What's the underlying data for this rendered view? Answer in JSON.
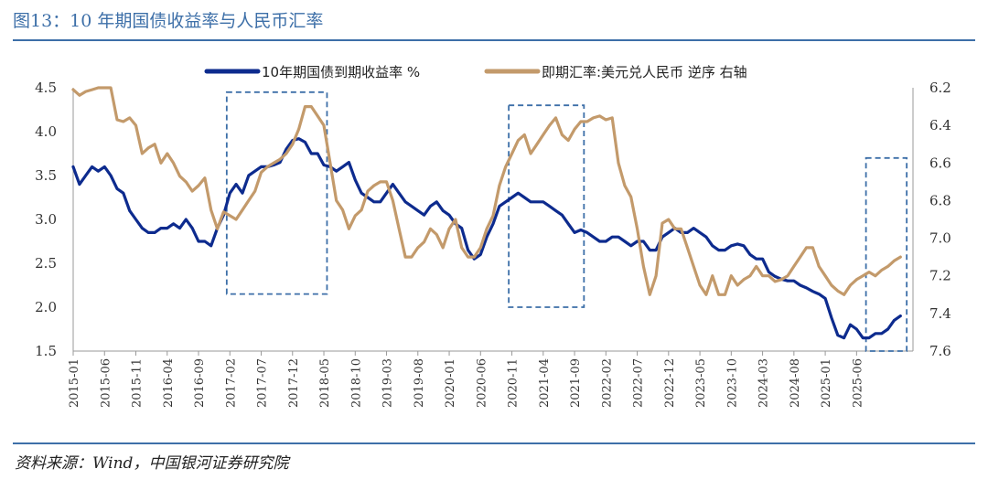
{
  "figure": {
    "title": "图13：10 年期国债收益率与人民币汇率",
    "source": "资料来源：Wind，中国银河证券研究院"
  },
  "colors": {
    "series_yield": "#0d2b8e",
    "series_fx": "#c39a6b",
    "box": "#3d6fa8",
    "title": "#3d6fa8"
  },
  "chart_data": {
    "type": "line",
    "x_unit": "month",
    "x_start": "2015-01",
    "x_ticks": [
      "2015-01",
      "2015-06",
      "2015-11",
      "2016-04",
      "2016-09",
      "2017-02",
      "2017-07",
      "2017-12",
      "2018-05",
      "2018-10",
      "2019-03",
      "2019-08",
      "2020-01",
      "2020-06",
      "2020-11",
      "2021-04",
      "2021-09",
      "2022-02",
      "2022-07",
      "2022-12",
      "2023-05",
      "2023-10",
      "2024-03",
      "2024-08",
      "2025-01",
      "2025-06"
    ],
    "left_axis": {
      "ylim": [
        1.5,
        4.5
      ],
      "ticks": [
        "1.5",
        "2.0",
        "2.5",
        "3.0",
        "3.5",
        "4.0",
        "4.5"
      ]
    },
    "right_axis": {
      "ylim": [
        6.2,
        7.6
      ],
      "inverted": true,
      "ticks": [
        "6.2",
        "6.4",
        "6.6",
        "6.8",
        "7.0",
        "7.2",
        "7.4",
        "7.6"
      ]
    },
    "series": [
      {
        "name": "10年期国债到期收益率 %",
        "axis": "left",
        "points": [
          [
            0,
            3.6
          ],
          [
            1,
            3.4
          ],
          [
            2,
            3.5
          ],
          [
            3,
            3.6
          ],
          [
            4,
            3.55
          ],
          [
            5,
            3.6
          ],
          [
            6,
            3.5
          ],
          [
            7,
            3.35
          ],
          [
            8,
            3.3
          ],
          [
            9,
            3.1
          ],
          [
            10,
            3.0
          ],
          [
            11,
            2.9
          ],
          [
            12,
            2.85
          ],
          [
            13,
            2.85
          ],
          [
            14,
            2.9
          ],
          [
            15,
            2.9
          ],
          [
            16,
            2.95
          ],
          [
            17,
            2.9
          ],
          [
            18,
            3.0
          ],
          [
            19,
            2.9
          ],
          [
            20,
            2.75
          ],
          [
            21,
            2.75
          ],
          [
            22,
            2.7
          ],
          [
            23,
            2.9
          ],
          [
            24,
            3.05
          ],
          [
            25,
            3.3
          ],
          [
            26,
            3.4
          ],
          [
            27,
            3.3
          ],
          [
            28,
            3.5
          ],
          [
            29,
            3.55
          ],
          [
            30,
            3.6
          ],
          [
            31,
            3.6
          ],
          [
            32,
            3.62
          ],
          [
            33,
            3.65
          ],
          [
            34,
            3.8
          ],
          [
            35,
            3.9
          ],
          [
            36,
            3.92
          ],
          [
            37,
            3.88
          ],
          [
            38,
            3.75
          ],
          [
            39,
            3.75
          ],
          [
            40,
            3.62
          ],
          [
            41,
            3.6
          ],
          [
            42,
            3.55
          ],
          [
            43,
            3.6
          ],
          [
            44,
            3.65
          ],
          [
            45,
            3.45
          ],
          [
            46,
            3.3
          ],
          [
            47,
            3.25
          ],
          [
            48,
            3.2
          ],
          [
            49,
            3.2
          ],
          [
            50,
            3.3
          ],
          [
            51,
            3.4
          ],
          [
            52,
            3.3
          ],
          [
            53,
            3.2
          ],
          [
            54,
            3.15
          ],
          [
            55,
            3.1
          ],
          [
            56,
            3.05
          ],
          [
            57,
            3.15
          ],
          [
            58,
            3.2
          ],
          [
            59,
            3.1
          ],
          [
            60,
            3.05
          ],
          [
            61,
            2.95
          ],
          [
            62,
            2.9
          ],
          [
            63,
            2.65
          ],
          [
            64,
            2.55
          ],
          [
            65,
            2.6
          ],
          [
            66,
            2.8
          ],
          [
            67,
            2.95
          ],
          [
            68,
            3.15
          ],
          [
            69,
            3.2
          ],
          [
            70,
            3.25
          ],
          [
            71,
            3.3
          ],
          [
            72,
            3.25
          ],
          [
            73,
            3.2
          ],
          [
            74,
            3.2
          ],
          [
            75,
            3.2
          ],
          [
            76,
            3.15
          ],
          [
            77,
            3.1
          ],
          [
            78,
            3.05
          ],
          [
            79,
            2.95
          ],
          [
            80,
            2.85
          ],
          [
            81,
            2.88
          ],
          [
            82,
            2.85
          ],
          [
            83,
            2.8
          ],
          [
            84,
            2.75
          ],
          [
            85,
            2.75
          ],
          [
            86,
            2.8
          ],
          [
            87,
            2.8
          ],
          [
            88,
            2.75
          ],
          [
            89,
            2.7
          ],
          [
            90,
            2.75
          ],
          [
            91,
            2.75
          ],
          [
            92,
            2.65
          ],
          [
            93,
            2.65
          ],
          [
            94,
            2.8
          ],
          [
            95,
            2.85
          ],
          [
            96,
            2.9
          ],
          [
            97,
            2.85
          ],
          [
            98,
            2.85
          ],
          [
            99,
            2.9
          ],
          [
            100,
            2.85
          ],
          [
            101,
            2.8
          ],
          [
            102,
            2.7
          ],
          [
            103,
            2.65
          ],
          [
            104,
            2.65
          ],
          [
            105,
            2.7
          ],
          [
            106,
            2.72
          ],
          [
            107,
            2.7
          ],
          [
            108,
            2.6
          ],
          [
            109,
            2.55
          ],
          [
            110,
            2.55
          ],
          [
            111,
            2.4
          ],
          [
            112,
            2.35
          ],
          [
            113,
            2.32
          ],
          [
            114,
            2.3
          ],
          [
            115,
            2.3
          ],
          [
            116,
            2.25
          ],
          [
            117,
            2.22
          ],
          [
            118,
            2.18
          ],
          [
            119,
            2.15
          ],
          [
            120,
            2.1
          ],
          [
            121,
            1.88
          ],
          [
            122,
            1.68
          ],
          [
            123,
            1.65
          ],
          [
            124,
            1.8
          ],
          [
            125,
            1.75
          ],
          [
            126,
            1.65
          ],
          [
            127,
            1.65
          ],
          [
            128,
            1.7
          ],
          [
            129,
            1.7
          ],
          [
            130,
            1.75
          ],
          [
            131,
            1.85
          ],
          [
            132,
            1.9
          ]
        ]
      },
      {
        "name": "即期汇率:美元兑人民币 逆序 右轴",
        "axis": "right",
        "points": [
          [
            0,
            6.21
          ],
          [
            1,
            6.24
          ],
          [
            2,
            6.22
          ],
          [
            3,
            6.21
          ],
          [
            4,
            6.2
          ],
          [
            5,
            6.2
          ],
          [
            6,
            6.2
          ],
          [
            7,
            6.37
          ],
          [
            8,
            6.38
          ],
          [
            9,
            6.36
          ],
          [
            10,
            6.4
          ],
          [
            11,
            6.55
          ],
          [
            12,
            6.52
          ],
          [
            13,
            6.5
          ],
          [
            14,
            6.6
          ],
          [
            15,
            6.55
          ],
          [
            16,
            6.6
          ],
          [
            17,
            6.67
          ],
          [
            18,
            6.7
          ],
          [
            19,
            6.75
          ],
          [
            20,
            6.72
          ],
          [
            21,
            6.68
          ],
          [
            22,
            6.85
          ],
          [
            23,
            6.95
          ],
          [
            24,
            6.86
          ],
          [
            25,
            6.88
          ],
          [
            26,
            6.9
          ],
          [
            27,
            6.85
          ],
          [
            28,
            6.8
          ],
          [
            29,
            6.75
          ],
          [
            30,
            6.65
          ],
          [
            31,
            6.62
          ],
          [
            32,
            6.6
          ],
          [
            33,
            6.58
          ],
          [
            34,
            6.55
          ],
          [
            35,
            6.5
          ],
          [
            36,
            6.42
          ],
          [
            37,
            6.3
          ],
          [
            38,
            6.3
          ],
          [
            39,
            6.35
          ],
          [
            40,
            6.4
          ],
          [
            41,
            6.6
          ],
          [
            42,
            6.8
          ],
          [
            43,
            6.85
          ],
          [
            44,
            6.95
          ],
          [
            45,
            6.88
          ],
          [
            46,
            6.85
          ],
          [
            47,
            6.75
          ],
          [
            48,
            6.72
          ],
          [
            49,
            6.7
          ],
          [
            50,
            6.7
          ],
          [
            51,
            6.8
          ],
          [
            52,
            6.95
          ],
          [
            53,
            7.1
          ],
          [
            54,
            7.1
          ],
          [
            55,
            7.05
          ],
          [
            56,
            7.02
          ],
          [
            57,
            6.95
          ],
          [
            58,
            6.98
          ],
          [
            59,
            7.05
          ],
          [
            60,
            6.95
          ],
          [
            61,
            6.9
          ],
          [
            62,
            7.05
          ],
          [
            63,
            7.1
          ],
          [
            64,
            7.1
          ],
          [
            65,
            7.05
          ],
          [
            66,
            6.95
          ],
          [
            67,
            6.88
          ],
          [
            68,
            6.72
          ],
          [
            69,
            6.62
          ],
          [
            70,
            6.55
          ],
          [
            71,
            6.48
          ],
          [
            72,
            6.45
          ],
          [
            73,
            6.55
          ],
          [
            74,
            6.5
          ],
          [
            75,
            6.45
          ],
          [
            76,
            6.4
          ],
          [
            77,
            6.36
          ],
          [
            78,
            6.45
          ],
          [
            79,
            6.48
          ],
          [
            80,
            6.42
          ],
          [
            81,
            6.38
          ],
          [
            82,
            6.38
          ],
          [
            83,
            6.36
          ],
          [
            84,
            6.35
          ],
          [
            85,
            6.37
          ],
          [
            86,
            6.36
          ],
          [
            87,
            6.6
          ],
          [
            88,
            6.72
          ],
          [
            89,
            6.78
          ],
          [
            90,
            6.95
          ],
          [
            91,
            7.15
          ],
          [
            92,
            7.3
          ],
          [
            93,
            7.2
          ],
          [
            94,
            6.92
          ],
          [
            95,
            6.9
          ],
          [
            96,
            6.95
          ],
          [
            97,
            6.95
          ],
          [
            98,
            7.05
          ],
          [
            99,
            7.15
          ],
          [
            100,
            7.25
          ],
          [
            101,
            7.3
          ],
          [
            102,
            7.2
          ],
          [
            103,
            7.3
          ],
          [
            104,
            7.3
          ],
          [
            105,
            7.2
          ],
          [
            106,
            7.25
          ],
          [
            107,
            7.22
          ],
          [
            108,
            7.2
          ],
          [
            109,
            7.15
          ],
          [
            110,
            7.2
          ],
          [
            111,
            7.2
          ],
          [
            112,
            7.23
          ],
          [
            113,
            7.22
          ],
          [
            114,
            7.2
          ],
          [
            115,
            7.15
          ],
          [
            116,
            7.1
          ],
          [
            117,
            7.05
          ],
          [
            118,
            7.05
          ],
          [
            119,
            7.15
          ],
          [
            120,
            7.2
          ],
          [
            121,
            7.25
          ],
          [
            122,
            7.28
          ],
          [
            123,
            7.3
          ],
          [
            124,
            7.25
          ],
          [
            125,
            7.22
          ],
          [
            126,
            7.2
          ],
          [
            127,
            7.18
          ],
          [
            128,
            7.2
          ],
          [
            129,
            7.17
          ],
          [
            130,
            7.15
          ],
          [
            131,
            7.12
          ],
          [
            132,
            7.1
          ]
        ]
      }
    ],
    "highlight_boxes": [
      {
        "label": "box-2017",
        "x_from": 24.5,
        "x_to": 40.5,
        "axis": "left",
        "y_from": 2.15,
        "y_to": 4.45
      },
      {
        "label": "box-2020",
        "x_from": 69.5,
        "x_to": 81.5,
        "axis": "left",
        "y_from": 2.0,
        "y_to": 4.3
      },
      {
        "label": "box-2025",
        "x_from": 126.5,
        "x_to": 133,
        "axis": "left",
        "y_from": 1.5,
        "y_to": 3.7
      }
    ]
  }
}
